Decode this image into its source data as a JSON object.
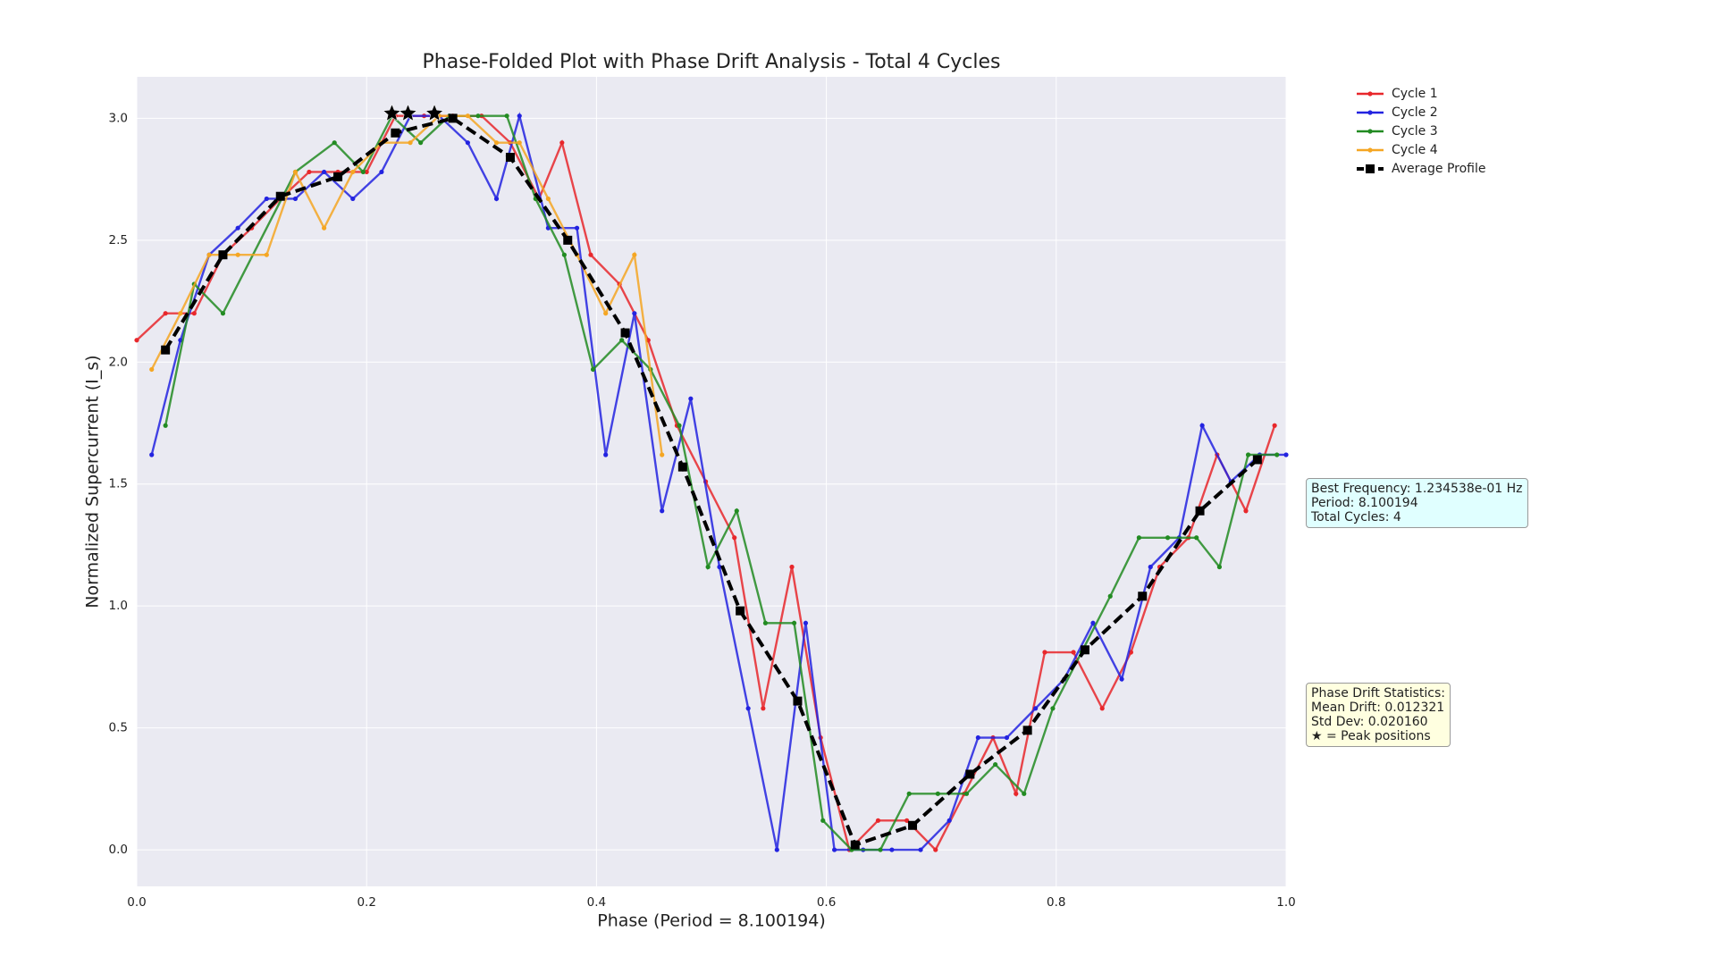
{
  "chart_data": {
    "type": "line",
    "title": "Phase-Folded Plot with Phase Drift Analysis - Total 4 Cycles",
    "x_label": "Phase (Period = 8.100194)",
    "y_label": "Normalized Supercurrent (I_s)",
    "xlim": [
      0,
      1
    ],
    "ylim": [
      -0.15,
      3.17
    ],
    "xticks": [
      {
        "value": 0,
        "label": "0.0"
      },
      {
        "value": 0.2,
        "label": "0.2"
      },
      {
        "value": 0.4,
        "label": "0.4"
      },
      {
        "value": 0.6,
        "label": "0.6"
      },
      {
        "value": 0.8,
        "label": "0.8"
      },
      {
        "value": 1,
        "label": "1.0"
      }
    ],
    "yticks": [
      {
        "value": 0,
        "label": "0.0"
      },
      {
        "value": 0.5,
        "label": "0.5"
      },
      {
        "value": 1,
        "label": "1.0"
      },
      {
        "value": 1.5,
        "label": "1.5"
      },
      {
        "value": 2,
        "label": "2.0"
      },
      {
        "value": 2.5,
        "label": "2.5"
      },
      {
        "value": 3,
        "label": "3.0"
      }
    ],
    "grid": true,
    "series": [
      {
        "name": "Cycle 1",
        "color": "#e8272b",
        "dashed": false,
        "x": [
          0,
          0.025,
          0.05,
          0.075,
          0.1,
          0.125,
          0.15,
          0.175,
          0.2,
          0.225,
          0.25,
          0.275,
          0.3,
          0.325,
          0.35,
          0.37,
          0.395,
          0.42,
          0.445,
          0.47,
          0.495,
          0.52,
          0.545,
          0.57,
          0.595,
          0.62,
          0.645,
          0.67,
          0.695,
          0.72,
          0.745,
          0.765,
          0.79,
          0.815,
          0.84,
          0.865,
          0.89,
          0.915,
          0.94,
          0.965,
          0.99
        ],
        "values": [
          2.09,
          2.2,
          2.2,
          2.44,
          2.55,
          2.67,
          2.78,
          2.78,
          2.78,
          3.01,
          3.01,
          3.01,
          3.01,
          2.9,
          2.67,
          2.9,
          2.44,
          2.32,
          2.09,
          1.74,
          1.51,
          1.28,
          0.58,
          1.16,
          0.46,
          0.0,
          0.12,
          0.12,
          0.0,
          0.23,
          0.46,
          0.23,
          0.81,
          0.81,
          0.58,
          0.81,
          1.16,
          1.28,
          1.62,
          1.39,
          1.74
        ]
      },
      {
        "name": "Cycle 2",
        "color": "#2323e0",
        "dashed": false,
        "x": [
          0.013,
          0.038,
          0.063,
          0.088,
          0.113,
          0.138,
          0.163,
          0.188,
          0.213,
          0.238,
          0.263,
          0.288,
          0.313,
          0.333,
          0.358,
          0.383,
          0.408,
          0.433,
          0.457,
          0.482,
          0.507,
          0.532,
          0.557,
          0.582,
          0.607,
          0.632,
          0.657,
          0.682,
          0.707,
          0.732,
          0.757,
          0.782,
          0.807,
          0.832,
          0.857,
          0.882,
          0.907,
          0.927,
          0.952,
          0.977,
          1.0
        ],
        "values": [
          1.62,
          2.09,
          2.44,
          2.55,
          2.67,
          2.67,
          2.78,
          2.67,
          2.78,
          3.01,
          3.01,
          2.9,
          2.67,
          3.01,
          2.55,
          2.55,
          1.62,
          2.2,
          1.39,
          1.85,
          1.16,
          0.58,
          0.0,
          0.93,
          0.0,
          0.0,
          0.0,
          0.0,
          0.12,
          0.46,
          0.46,
          0.58,
          0.7,
          0.93,
          0.7,
          1.16,
          1.28,
          1.74,
          1.51,
          1.62,
          1.62
        ]
      },
      {
        "name": "Cycle 3",
        "color": "#228b22",
        "dashed": false,
        "x": [
          0.025,
          0.05,
          0.075,
          0.138,
          0.172,
          0.197,
          0.222,
          0.247,
          0.272,
          0.297,
          0.322,
          0.347,
          0.372,
          0.397,
          0.422,
          0.447,
          0.472,
          0.497,
          0.522,
          0.547,
          0.572,
          0.597,
          0.622,
          0.647,
          0.672,
          0.697,
          0.722,
          0.747,
          0.772,
          0.797,
          0.822,
          0.847,
          0.872,
          0.897,
          0.922,
          0.942,
          0.967,
          0.992
        ],
        "values": [
          1.74,
          2.32,
          2.2,
          2.78,
          2.9,
          2.78,
          3.01,
          2.9,
          3.01,
          3.01,
          3.01,
          2.67,
          2.44,
          1.97,
          2.09,
          1.97,
          1.74,
          1.16,
          1.39,
          0.93,
          0.93,
          0.12,
          0.0,
          0.0,
          0.23,
          0.23,
          0.23,
          0.35,
          0.23,
          0.58,
          0.81,
          1.04,
          1.28,
          1.28,
          1.28,
          1.16,
          1.62,
          1.62
        ]
      },
      {
        "name": "Cycle 4",
        "color": "#f5a623",
        "dashed": false,
        "x": [
          0.013,
          0.038,
          0.063,
          0.088,
          0.113,
          0.138,
          0.163,
          0.188,
          0.213,
          0.238,
          0.263,
          0.288,
          0.313,
          0.333,
          0.358,
          0.383,
          0.408,
          0.433,
          0.457
        ],
        "values": [
          1.97,
          2.2,
          2.44,
          2.44,
          2.44,
          2.78,
          2.55,
          2.78,
          2.9,
          2.9,
          3.01,
          3.01,
          2.9,
          2.9,
          2.67,
          2.44,
          2.2,
          2.44,
          1.62
        ]
      },
      {
        "name": "Average Profile",
        "color": "#000000",
        "dashed": true,
        "x": [
          0.025,
          0.075,
          0.125,
          0.175,
          0.225,
          0.275,
          0.325,
          0.375,
          0.425,
          0.475,
          0.525,
          0.575,
          0.625,
          0.675,
          0.725,
          0.775,
          0.825,
          0.875,
          0.925,
          0.975
        ],
        "values": [
          2.05,
          2.44,
          2.68,
          2.76,
          2.94,
          3.0,
          2.84,
          2.5,
          2.12,
          1.57,
          0.98,
          0.61,
          0.02,
          0.1,
          0.31,
          0.49,
          0.82,
          1.04,
          1.39,
          1.6
        ]
      }
    ],
    "peaks": {
      "x": [
        0.222,
        0.236,
        0.259
      ],
      "values": [
        3.02,
        3.02,
        3.02
      ]
    },
    "annotations": [
      {
        "lines": [
          "Best Frequency: 1.234538e-01 Hz",
          "Period: 8.100194",
          "Total Cycles: 4"
        ],
        "color": "#e0ffff"
      },
      {
        "lines": [
          "Phase Drift Statistics:",
          "Mean Drift: 0.012321",
          "Std Dev: 0.020160",
          "★ = Peak positions"
        ],
        "color": "#ffffe0"
      }
    ]
  }
}
